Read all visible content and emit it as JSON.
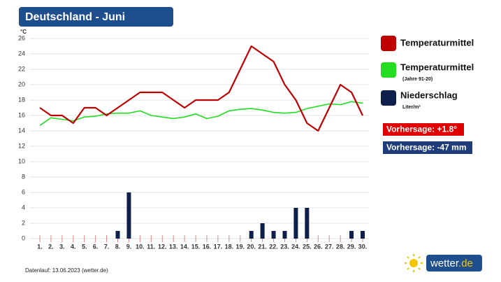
{
  "chart_data": {
    "type": "line",
    "title": "Deutschland - Juni",
    "y_unit": "°C",
    "categories": [
      "1.",
      "2.",
      "3.",
      "4.",
      "5.",
      "6.",
      "7.",
      "8.",
      "9.",
      "10.",
      "11.",
      "12.",
      "13.",
      "14.",
      "15.",
      "16.",
      "17.",
      "18.",
      "19.",
      "20.",
      "21.",
      "22.",
      "23.",
      "24.",
      "25.",
      "26.",
      "27.",
      "28.",
      "29.",
      "30."
    ],
    "category_colors": [
      "#222",
      "#222",
      "#c00000",
      "#c00000",
      "#222",
      "#222",
      "#222",
      "#222",
      "#222",
      "#c00000",
      "#c00000",
      "#222",
      "#222",
      "#222",
      "#222",
      "#222",
      "#c00000",
      "#c00000",
      "#222",
      "#222",
      "#222",
      "#222",
      "#222",
      "#c00000",
      "#c00000",
      "#222",
      "#222",
      "#222",
      "#222",
      "#222"
    ],
    "ylim": [
      0,
      26
    ],
    "yticks": [
      0,
      2,
      4,
      6,
      8,
      10,
      12,
      14,
      16,
      18,
      20,
      22,
      24,
      26
    ],
    "grid": true,
    "series": [
      {
        "name": "Temperaturmittel",
        "type": "line",
        "color": "#c00000",
        "values": [
          17,
          16,
          16,
          15,
          17,
          17,
          16,
          17,
          18,
          19,
          19,
          19,
          18,
          17,
          18,
          18,
          18,
          19,
          22,
          25,
          24,
          23,
          20,
          18,
          15,
          14,
          17,
          20,
          19,
          16
        ]
      },
      {
        "name": "Temperaturmittel",
        "note": "(Jahre 91-20)",
        "type": "line",
        "color": "#22dd22",
        "values": [
          14.7,
          15.7,
          15.5,
          15.3,
          15.8,
          15.9,
          16.2,
          16.3,
          16.3,
          16.6,
          16.0,
          15.8,
          15.6,
          15.8,
          16.2,
          15.6,
          15.9,
          16.6,
          16.8,
          16.9,
          16.7,
          16.4,
          16.3,
          16.4,
          16.9,
          17.2,
          17.5,
          17.4,
          17.8,
          17.6
        ]
      },
      {
        "name": "Niederschlag",
        "note": "Liter/m²",
        "type": "bar",
        "color": "#0f1f4b",
        "values": [
          0,
          0,
          0,
          0,
          0,
          0,
          0,
          1,
          6,
          0,
          0,
          0,
          0,
          0,
          0,
          0,
          0,
          0,
          0,
          1,
          2,
          1,
          1,
          4,
          4,
          0,
          0,
          0,
          1,
          1
        ]
      }
    ],
    "annotations": [
      {
        "text": "Vorhersage: +1.8°",
        "color": "#e00000"
      },
      {
        "text": "Vorhersage: -47 mm",
        "color": "#1f3d7a"
      }
    ],
    "footer": "Datenlauf: 13.06.2023 (wetter.de)",
    "logo": [
      "wetter",
      ".de"
    ]
  }
}
